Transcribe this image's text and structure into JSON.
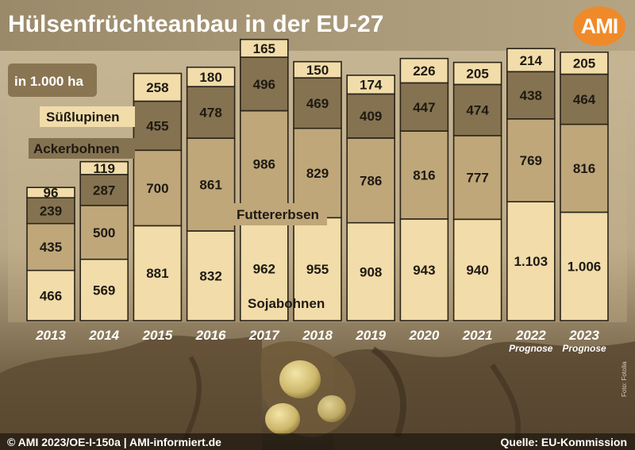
{
  "header": {
    "title": "Hülsenfrüchteanbau in der EU-27",
    "logo": "AMI"
  },
  "footer": {
    "left": "© AMI 2023/OE-I-150a | AMI-informiert.de",
    "right": "Quelle: EU-Kommission",
    "photo_credit": "Foto: Fotolia"
  },
  "colors": {
    "sojabohnen": "#f1dcaa",
    "futtererbsen": "#bfa77a",
    "ackerbohnen": "#857250",
    "suesslupinen": "#f1dcaa",
    "outline": "#2b2418",
    "label_bg": "#f1dcaa",
    "ackerbohnen_label_bg": "#857250"
  },
  "chart_data": {
    "type": "bar",
    "stacked": true,
    "unit_label": "in 1.000 ha",
    "categories": [
      "2013",
      "2014",
      "2015",
      "2016",
      "2017",
      "2018",
      "2019",
      "2020",
      "2021",
      "2022",
      "2023"
    ],
    "category_notes": [
      "",
      "",
      "",
      "",
      "",
      "",
      "",
      "",
      "",
      "Prognose",
      "Prognose"
    ],
    "series": [
      {
        "name": "Sojabohnen",
        "key": "sojabohnen",
        "values": [
          466,
          569,
          881,
          832,
          962,
          955,
          908,
          943,
          940,
          1103,
          1006
        ],
        "labels": [
          "466",
          "569",
          "881",
          "832",
          "962",
          "955",
          "908",
          "943",
          "940",
          "1.103",
          "1.006"
        ]
      },
      {
        "name": "Futtererbsen",
        "key": "futtererbsen",
        "values": [
          435,
          500,
          700,
          861,
          986,
          829,
          786,
          816,
          777,
          769,
          816
        ],
        "labels": [
          "435",
          "500",
          "700",
          "861",
          "986",
          "829",
          "786",
          "816",
          "777",
          "769",
          "816"
        ]
      },
      {
        "name": "Ackerbohnen",
        "key": "ackerbohnen",
        "values": [
          239,
          287,
          455,
          478,
          496,
          469,
          409,
          447,
          474,
          438,
          464
        ],
        "labels": [
          "239",
          "287",
          "455",
          "478",
          "496",
          "469",
          "409",
          "447",
          "474",
          "438",
          "464"
        ]
      },
      {
        "name": "Süßlupinen",
        "key": "suesslupinen",
        "values": [
          96,
          119,
          258,
          180,
          165,
          150,
          174,
          226,
          205,
          214,
          205
        ],
        "labels": [
          "96",
          "119",
          "258",
          "180",
          "165",
          "150",
          "174",
          "226",
          "205",
          "214",
          "205"
        ]
      }
    ],
    "legend_placement": "inline"
  }
}
